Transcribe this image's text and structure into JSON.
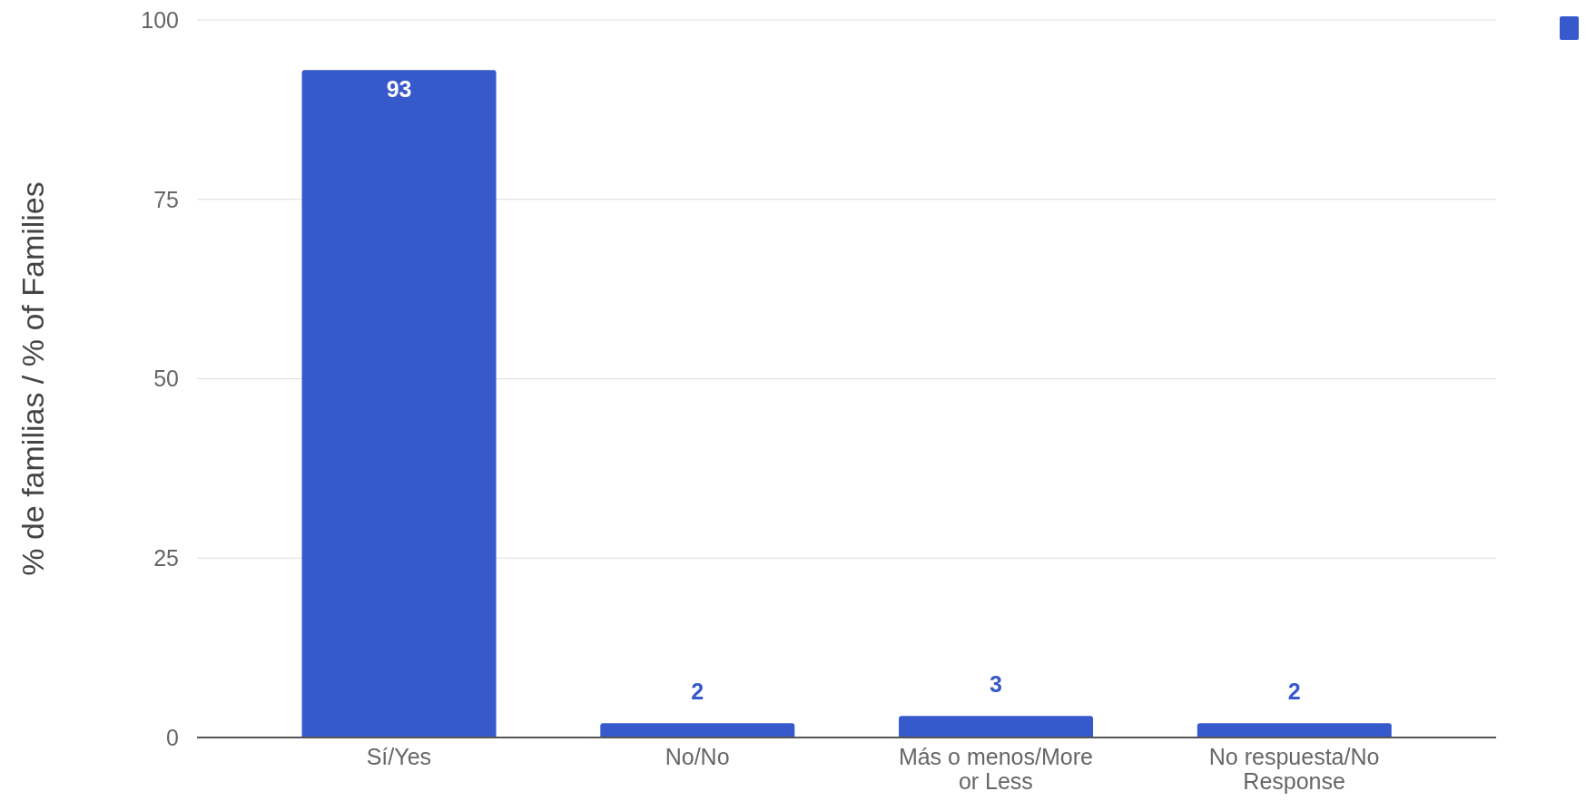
{
  "chart_data": {
    "type": "bar",
    "ylabel": "% de familias / % of Families",
    "categories": [
      "Sí/Yes",
      "No/No",
      "Más o menos/More or Less",
      "No respuesta/No Response"
    ],
    "values": [
      93,
      2,
      3,
      2
    ],
    "color": "#3659cc",
    "ylim": [
      0,
      100
    ],
    "yticks": [
      0,
      25,
      50,
      75,
      100
    ],
    "grid": "y",
    "data_labels": true
  }
}
